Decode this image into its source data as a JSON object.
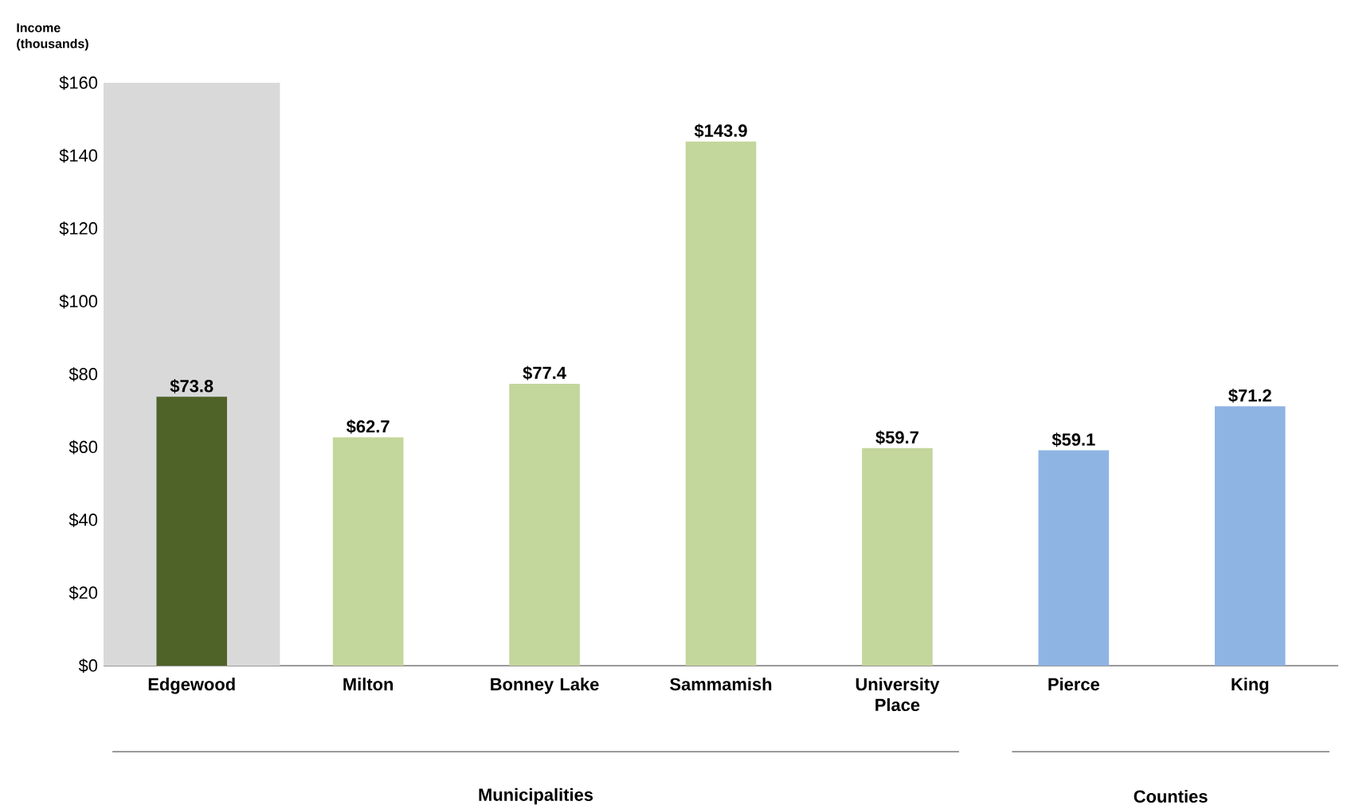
{
  "chart_data": {
    "type": "bar",
    "ylabel": "Income (thousands)",
    "categories": [
      "Edgewood",
      "Milton",
      "Bonney Lake",
      "Sammamish",
      "University Place",
      "Pierce",
      "King"
    ],
    "values": [
      73.8,
      62.7,
      77.4,
      143.9,
      59.7,
      59.1,
      71.2
    ],
    "colors": [
      "#4f6228",
      "#c3d69b",
      "#c3d69b",
      "#c3d69b",
      "#c3d69b",
      "#8eb4e3",
      "#8eb4e3"
    ],
    "value_labels": [
      "$73.8",
      "$62.7",
      "$77.4",
      "$143.9",
      "$59.7",
      "$59.1",
      "$71.2"
    ],
    "ylim": [
      0,
      160
    ],
    "yticks": [
      {
        "value": 0,
        "label": "$0"
      },
      {
        "value": 20,
        "label": "$20"
      },
      {
        "value": 40,
        "label": "$40"
      },
      {
        "value": 60,
        "label": "$60"
      },
      {
        "value": 80,
        "label": "$80"
      },
      {
        "value": 100,
        "label": "$100"
      },
      {
        "value": 120,
        "label": "$120"
      },
      {
        "value": 140,
        "label": "$140"
      },
      {
        "value": 160,
        "label": "$160"
      }
    ],
    "bands": [
      {
        "axis": "x",
        "from": "Edgewood",
        "to": "Edgewood",
        "color": "#d9d9d9"
      }
    ],
    "annotations": [
      "Municipalities",
      "Counties"
    ],
    "grid": false
  }
}
